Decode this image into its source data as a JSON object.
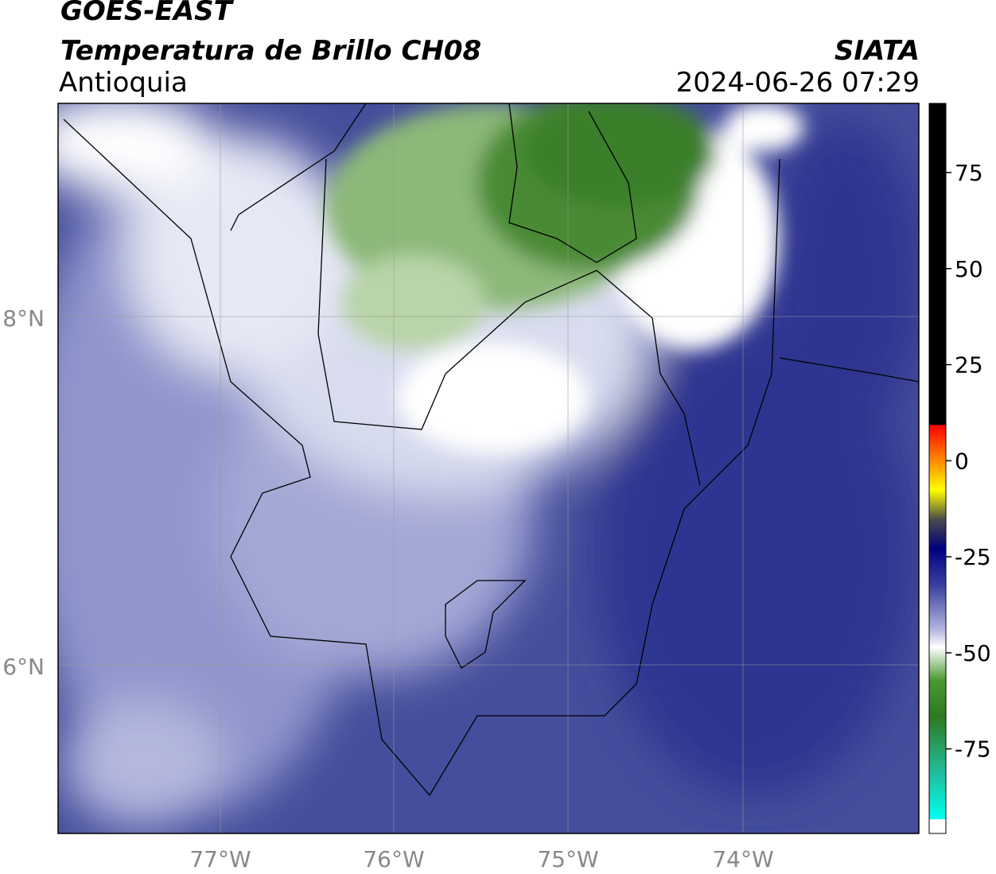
{
  "header": {
    "title": "GOES-EAST",
    "subtitle": "Temperatura de Brillo CH08",
    "region": "Antioquia",
    "source": "SIATA",
    "datetime": "2024-06-26 07:29"
  },
  "map": {
    "lat_labels": [
      "8°N",
      "6°N"
    ],
    "lon_labels": [
      "77°W",
      "76°W",
      "75°W",
      "74°W"
    ]
  },
  "colorbar": {
    "lim": [
      -97,
      93
    ],
    "ticks": [
      75,
      50,
      25,
      0,
      -25,
      -50,
      -75
    ]
  }
}
